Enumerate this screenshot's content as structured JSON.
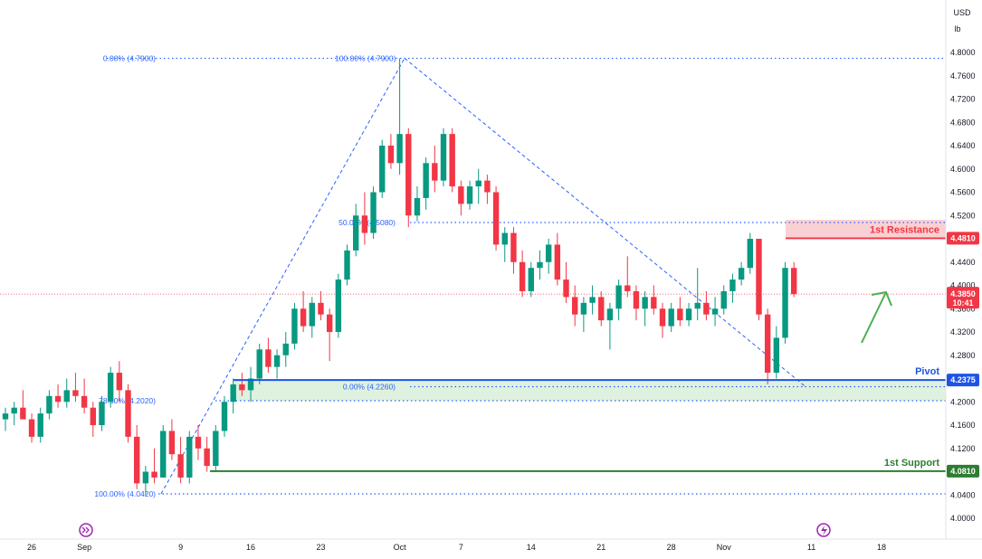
{
  "chart_data": {
    "type": "candlestick",
    "title": "",
    "currency": "USD",
    "unit": "lb",
    "ylim": [
      3.98,
      4.82
    ],
    "y_ticks": [
      4.8,
      4.76,
      4.72,
      4.68,
      4.64,
      4.6,
      4.56,
      4.52,
      4.48,
      4.44,
      4.4,
      4.36,
      4.32,
      4.28,
      4.24,
      4.2,
      4.16,
      4.12,
      4.08,
      4.04,
      4.0
    ],
    "y_tick_labels": [
      "4.8000",
      "4.7600",
      "4.7200",
      "4.6800",
      "4.6400",
      "4.6000",
      "4.5600",
      "4.5200",
      "4.4800",
      "4.4400",
      "4.4000",
      "4.3600",
      "4.3200",
      "4.2800",
      "4.2400",
      "4.2000",
      "4.1600",
      "4.1200",
      "4.0800",
      "4.0400",
      "4.0000"
    ],
    "x_ticks": [
      {
        "label": "26",
        "bar": 3
      },
      {
        "label": "Sep",
        "bar": 9
      },
      {
        "label": "9",
        "bar": 20
      },
      {
        "label": "16",
        "bar": 28
      },
      {
        "label": "23",
        "bar": 36
      },
      {
        "label": "Oct",
        "bar": 45
      },
      {
        "label": "7",
        "bar": 52
      },
      {
        "label": "14",
        "bar": 60
      },
      {
        "label": "21",
        "bar": 68
      },
      {
        "label": "28",
        "bar": 76
      },
      {
        "label": "Nov",
        "bar": 82
      },
      {
        "label": "11",
        "bar": 92
      },
      {
        "label": "18",
        "bar": 100
      }
    ],
    "candles": [
      [
        4.17,
        4.19,
        4.15,
        4.18
      ],
      [
        4.18,
        4.2,
        4.16,
        4.19
      ],
      [
        4.19,
        4.22,
        4.17,
        4.17
      ],
      [
        4.17,
        4.18,
        4.13,
        4.14
      ],
      [
        4.14,
        4.19,
        4.13,
        4.18
      ],
      [
        4.18,
        4.22,
        4.17,
        4.21
      ],
      [
        4.21,
        4.23,
        4.19,
        4.2
      ],
      [
        4.2,
        4.24,
        4.19,
        4.22
      ],
      [
        4.22,
        4.25,
        4.2,
        4.21
      ],
      [
        4.21,
        4.24,
        4.18,
        4.19
      ],
      [
        4.19,
        4.2,
        4.14,
        4.16
      ],
      [
        4.16,
        4.21,
        4.15,
        4.2
      ],
      [
        4.2,
        4.26,
        4.19,
        4.25
      ],
      [
        4.25,
        4.27,
        4.2,
        4.22
      ],
      [
        4.22,
        4.23,
        4.13,
        4.14
      ],
      [
        4.14,
        4.16,
        4.05,
        4.06
      ],
      [
        4.06,
        4.09,
        4.04,
        4.08
      ],
      [
        4.08,
        4.12,
        4.06,
        4.07
      ],
      [
        4.07,
        4.16,
        4.07,
        4.15
      ],
      [
        4.15,
        4.17,
        4.1,
        4.11
      ],
      [
        4.11,
        4.14,
        4.06,
        4.07
      ],
      [
        4.07,
        4.15,
        4.06,
        4.14
      ],
      [
        4.14,
        4.16,
        4.1,
        4.12
      ],
      [
        4.12,
        4.14,
        4.08,
        4.09
      ],
      [
        4.09,
        4.16,
        4.08,
        4.15
      ],
      [
        4.15,
        4.21,
        4.14,
        4.2
      ],
      [
        4.2,
        4.24,
        4.18,
        4.23
      ],
      [
        4.23,
        4.25,
        4.21,
        4.22
      ],
      [
        4.22,
        4.26,
        4.2,
        4.24
      ],
      [
        4.24,
        4.3,
        4.23,
        4.29
      ],
      [
        4.29,
        4.31,
        4.25,
        4.26
      ],
      [
        4.26,
        4.29,
        4.24,
        4.28
      ],
      [
        4.28,
        4.32,
        4.26,
        4.3
      ],
      [
        4.3,
        4.37,
        4.29,
        4.36
      ],
      [
        4.36,
        4.39,
        4.32,
        4.33
      ],
      [
        4.33,
        4.38,
        4.31,
        4.37
      ],
      [
        4.37,
        4.39,
        4.34,
        4.35
      ],
      [
        4.35,
        4.36,
        4.27,
        4.32
      ],
      [
        4.32,
        4.42,
        4.31,
        4.41
      ],
      [
        4.41,
        4.47,
        4.4,
        4.46
      ],
      [
        4.46,
        4.54,
        4.45,
        4.52
      ],
      [
        4.52,
        4.56,
        4.47,
        4.49
      ],
      [
        4.49,
        4.57,
        4.48,
        4.56
      ],
      [
        4.56,
        4.65,
        4.55,
        4.64
      ],
      [
        4.64,
        4.66,
        4.6,
        4.61
      ],
      [
        4.61,
        4.79,
        4.59,
        4.66
      ],
      [
        4.66,
        4.67,
        4.5,
        4.52
      ],
      [
        4.52,
        4.57,
        4.51,
        4.55
      ],
      [
        4.55,
        4.62,
        4.53,
        4.61
      ],
      [
        4.61,
        4.64,
        4.56,
        4.58
      ],
      [
        4.58,
        4.67,
        4.57,
        4.66
      ],
      [
        4.66,
        4.67,
        4.56,
        4.57
      ],
      [
        4.57,
        4.58,
        4.52,
        4.54
      ],
      [
        4.54,
        4.58,
        4.53,
        4.57
      ],
      [
        4.57,
        4.6,
        4.54,
        4.58
      ],
      [
        4.58,
        4.59,
        4.54,
        4.56
      ],
      [
        4.56,
        4.57,
        4.46,
        4.47
      ],
      [
        4.47,
        4.5,
        4.44,
        4.49
      ],
      [
        4.49,
        4.5,
        4.42,
        4.44
      ],
      [
        4.44,
        4.46,
        4.38,
        4.39
      ],
      [
        4.39,
        4.44,
        4.38,
        4.43
      ],
      [
        4.43,
        4.46,
        4.41,
        4.44
      ],
      [
        4.44,
        4.48,
        4.42,
        4.47
      ],
      [
        4.47,
        4.49,
        4.4,
        4.41
      ],
      [
        4.41,
        4.44,
        4.37,
        4.38
      ],
      [
        4.38,
        4.4,
        4.33,
        4.35
      ],
      [
        4.35,
        4.38,
        4.32,
        4.37
      ],
      [
        4.37,
        4.4,
        4.35,
        4.38
      ],
      [
        4.38,
        4.39,
        4.33,
        4.34
      ],
      [
        4.34,
        4.37,
        4.29,
        4.36
      ],
      [
        4.36,
        4.41,
        4.34,
        4.4
      ],
      [
        4.4,
        4.45,
        4.38,
        4.39
      ],
      [
        4.39,
        4.4,
        4.34,
        4.36
      ],
      [
        4.36,
        4.39,
        4.33,
        4.38
      ],
      [
        4.38,
        4.4,
        4.35,
        4.36
      ],
      [
        4.36,
        4.37,
        4.31,
        4.33
      ],
      [
        4.33,
        4.37,
        4.32,
        4.36
      ],
      [
        4.36,
        4.38,
        4.33,
        4.34
      ],
      [
        4.34,
        4.37,
        4.33,
        4.36
      ],
      [
        4.36,
        4.43,
        4.34,
        4.37
      ],
      [
        4.37,
        4.39,
        4.34,
        4.35
      ],
      [
        4.35,
        4.38,
        4.33,
        4.36
      ],
      [
        4.36,
        4.4,
        4.35,
        4.39
      ],
      [
        4.39,
        4.42,
        4.37,
        4.41
      ],
      [
        4.41,
        4.44,
        4.4,
        4.43
      ],
      [
        4.43,
        4.49,
        4.42,
        4.48
      ],
      [
        4.48,
        4.48,
        4.34,
        4.35
      ],
      [
        4.35,
        4.36,
        4.23,
        4.25
      ],
      [
        4.25,
        4.33,
        4.24,
        4.31
      ],
      [
        4.31,
        4.44,
        4.3,
        4.43
      ],
      [
        4.43,
        4.44,
        4.38,
        4.385
      ]
    ],
    "last_price": "4.3850",
    "last_price_countdown": "10:41",
    "levels": [
      {
        "name": "1st Resistance",
        "value": 4.481,
        "label": "4.4810",
        "color": "#f23645"
      },
      {
        "name": "Pivot",
        "value": 4.2375,
        "label": "4.2375",
        "color": "#1e53e5"
      },
      {
        "name": "1st Support",
        "value": 4.081,
        "label": "4.0810",
        "color": "#2e7d32"
      }
    ],
    "fib_labels": [
      {
        "text": "0.00% (4.7900)",
        "value": 4.79
      },
      {
        "text": "100.00% (4.7900)",
        "value": 4.79
      },
      {
        "text": "50.00% (4.5080)",
        "value": 4.508
      },
      {
        "text": "78.60% (4.2020)",
        "value": 4.202
      },
      {
        "text": "0.00% (4.2260)",
        "value": 4.226
      },
      {
        "text": "100.00% (4.0420)",
        "value": 4.042
      }
    ],
    "grid": false,
    "colors": {
      "up": "#089981",
      "down": "#f23645",
      "fib": "#2962ff",
      "resistance_zone": "#f8c8cc",
      "pivot_zone": "#dcefdc"
    }
  }
}
